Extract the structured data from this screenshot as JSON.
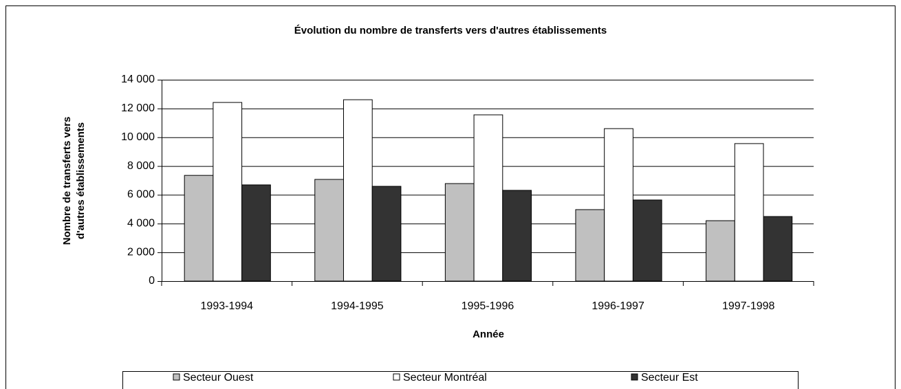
{
  "chart_data": {
    "type": "bar",
    "title": "Évolution du nombre de transferts vers d'autres établissements",
    "x_label": "Année",
    "y_label": [
      "Nombre de transferts vers",
      "d'autres établissements"
    ],
    "categories": [
      "1993-1994",
      "1994-1995",
      "1995-1996",
      "1996-1997",
      "1997-1998"
    ],
    "series": [
      {
        "name": "Secteur Ouest",
        "color": "#c0c0c0",
        "values": [
          7350,
          7070,
          6780,
          4970,
          4200
        ]
      },
      {
        "name": "Secteur Montréal",
        "color": "#ffffff",
        "values": [
          12420,
          12610,
          11560,
          10600,
          9560
        ]
      },
      {
        "name": "Secteur Est",
        "color": "#333333",
        "values": [
          6690,
          6590,
          6310,
          5640,
          4490
        ]
      }
    ],
    "ylim": [
      0,
      14000
    ],
    "yticks": [
      0,
      {
        "value": 2000,
        "label": "2 000"
      },
      {
        "value": 4000,
        "label": "4 000"
      },
      {
        "value": 6000,
        "label": "6 000"
      },
      {
        "value": 8000,
        "label": "8 000"
      },
      {
        "value": 10000,
        "label": "10 000"
      },
      {
        "value": 12000,
        "label": "12 000"
      },
      {
        "value": 14000,
        "label": "14 000"
      }
    ],
    "grid": true,
    "legend": "bottom"
  }
}
